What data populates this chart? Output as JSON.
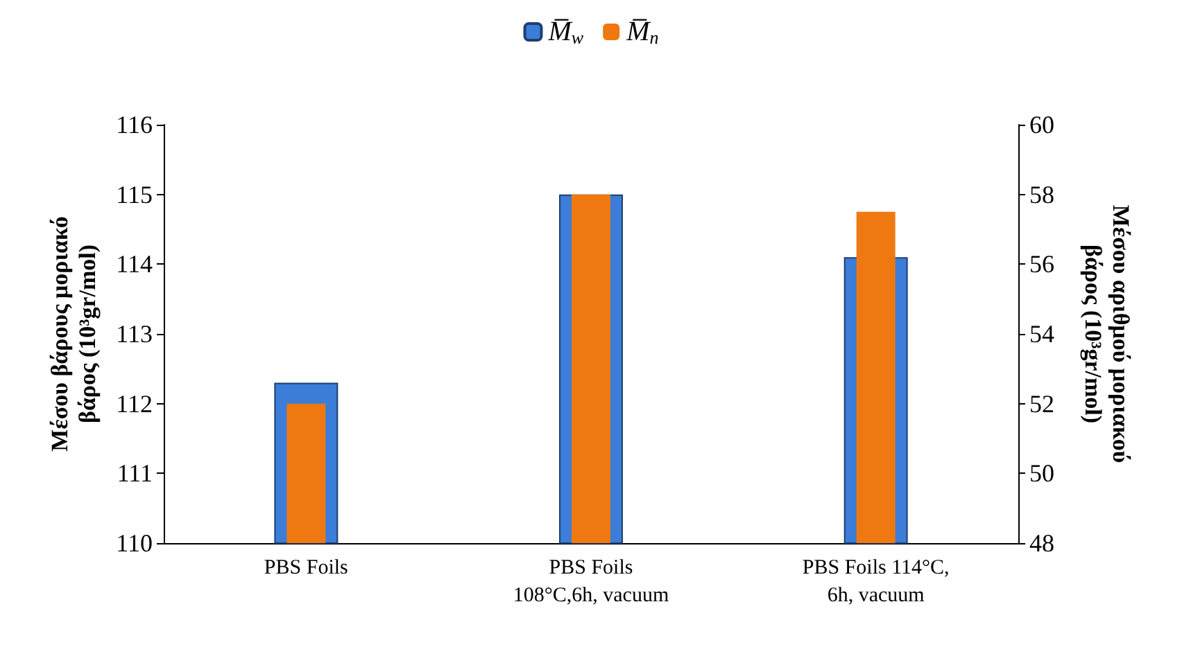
{
  "chart_data": {
    "type": "bar",
    "categories": [
      "PBS Foils",
      "PBS Foils\n108°C,6h, vacuum",
      "PBS Foils 114°C,\n6h, vacuum"
    ],
    "series": [
      {
        "name": "M̅$_{w}$",
        "color": "#3b7dd8",
        "values": [
          112.3,
          115.0,
          114.1
        ]
      },
      {
        "name": "M̅$_{n}$",
        "color": "#f07810",
        "values": [
          52.0,
          58.0,
          57.5
        ],
        "axis": "y2"
      }
    ],
    "ylabel": "Μέσου βάρους μοριακό\nβάρος (10³gr/mol)",
    "y2label": "Μέσου αριθμού μοριακού\nβάρος (10³gr/mol)",
    "ylim": [
      110,
      116
    ],
    "yticks": [
      110,
      111,
      112,
      113,
      114,
      115,
      116
    ],
    "y2lim": [
      48,
      60
    ],
    "y2ticks": [
      48,
      50,
      52,
      54,
      56,
      58,
      60
    ],
    "legend": "top",
    "grid": false
  }
}
